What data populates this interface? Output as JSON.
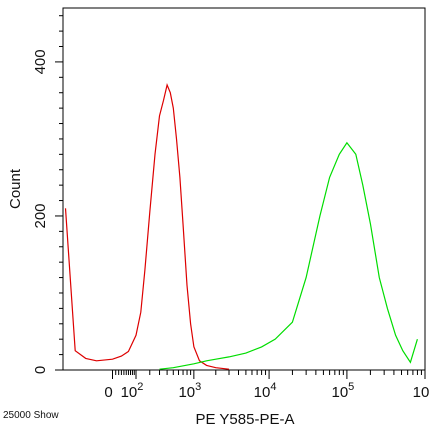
{
  "chart_data": {
    "type": "line",
    "xlabel": "PE Y585-PE-A",
    "ylabel": "Count",
    "x_scale": "logicle",
    "x_ticks": [
      {
        "label": "0",
        "value": 0
      },
      {
        "label": "10",
        "sup": "2",
        "value": 100
      },
      {
        "label": "10",
        "sup": "3",
        "value": 1000
      },
      {
        "label": "10",
        "sup": "4",
        "value": 10000
      },
      {
        "label": "10",
        "sup": "5",
        "value": 100000
      },
      {
        "label": "10",
        "sup": "",
        "value": 1000000
      }
    ],
    "y_ticks": [
      0,
      200,
      400
    ],
    "ylim": [
      0,
      470
    ],
    "grid": false,
    "footer": "25000 Show",
    "series": [
      {
        "color": "#dd0000",
        "x": [
          -300,
          -200,
          -120,
          -60,
          0,
          30,
          60,
          100,
          130,
          160,
          200,
          250,
          300,
          350,
          400,
          450,
          500,
          560,
          630,
          700,
          800,
          900,
          1000,
          1200,
          1500,
          2000,
          3000
        ],
        "y": [
          210,
          25,
          15,
          12,
          14,
          18,
          24,
          45,
          75,
          130,
          205,
          280,
          330,
          350,
          370,
          360,
          340,
          300,
          250,
          190,
          110,
          60,
          30,
          12,
          6,
          3,
          1
        ]
      },
      {
        "color": "#00dd00",
        "x": [
          300,
          500,
          1000,
          1500,
          2000,
          3000,
          5000,
          8000,
          12000,
          20000,
          30000,
          45000,
          60000,
          80000,
          100000,
          130000,
          160000,
          200000,
          260000,
          330000,
          420000,
          520000,
          650000,
          800000
        ],
        "y": [
          1,
          3,
          8,
          12,
          14,
          17,
          22,
          30,
          40,
          62,
          120,
          200,
          250,
          280,
          295,
          280,
          240,
          190,
          120,
          80,
          45,
          25,
          10,
          40
        ]
      }
    ]
  }
}
